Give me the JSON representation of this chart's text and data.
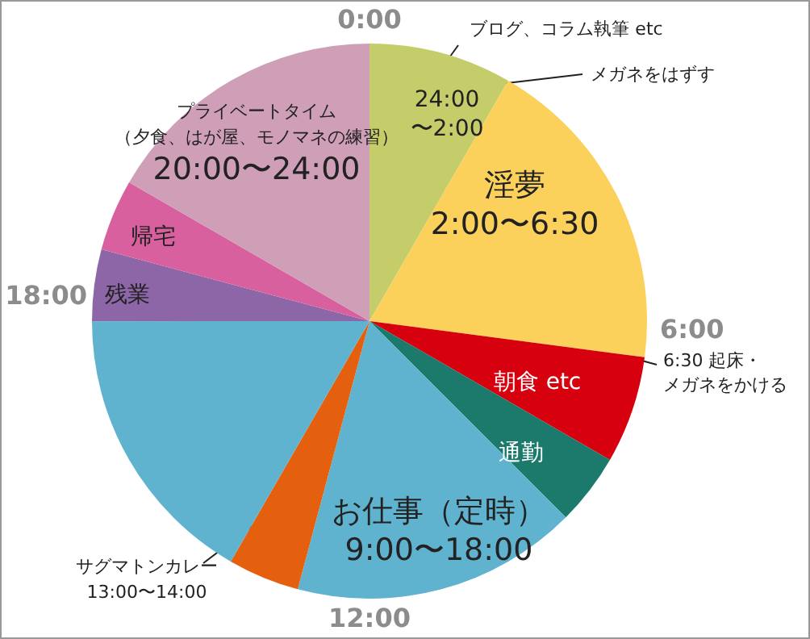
{
  "chart_data": {
    "type": "pie",
    "categories": [
      "24:00\n〜2:00",
      "淫夢2:00〜6:30",
      "朝食 etc",
      "通勤",
      "お仕事（定時）9:00〜18:00",
      "サグマトンカレー13:00〜14:00",
      null,
      "残業",
      "帰宅",
      "プライベートタイム（夕食、はが屋、モノマネの練習）20:00〜24:00"
    ],
    "values": [
      8.33,
      18.75,
      6.25,
      4.17,
      16.67,
      4.17,
      16.66,
      4.17,
      4.17,
      16.67
    ],
    "colors": [
      "#c5cc6a",
      "#fbd15b",
      "#d6000f",
      "#1b7a6b",
      "#5fb3cf",
      "#e4600f",
      "#5fb3cf",
      "#8d66a8",
      "#d9609f",
      "#cf9fb7"
    ],
    "annotations": [
      "0:00",
      "6:00",
      "12:00",
      "18:00",
      "ブログ、コラム執筆 etc",
      "メガネをはずす",
      "6:30 起床・メガネをかける"
    ]
  }
}
